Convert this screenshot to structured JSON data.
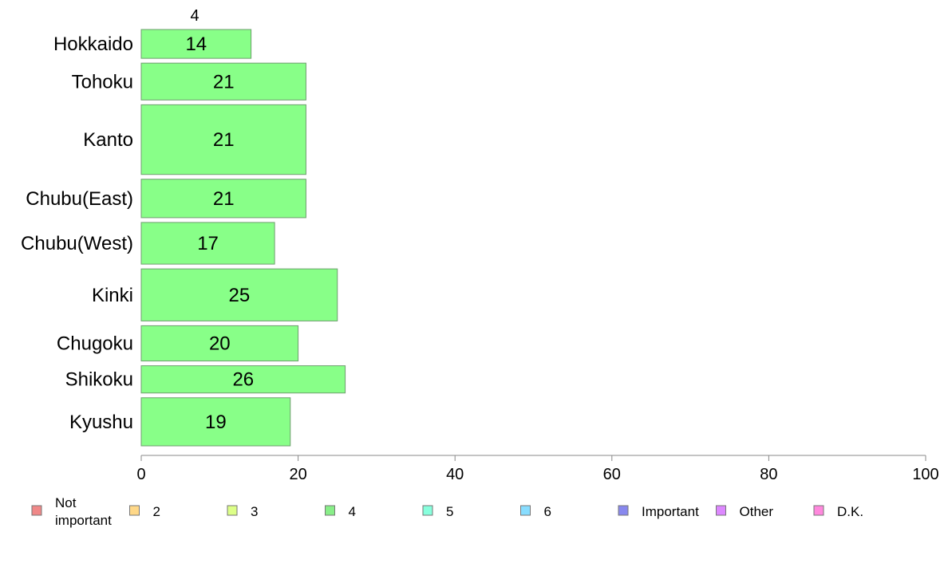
{
  "chart_data": {
    "type": "bar",
    "orientation": "horizontal",
    "series_label_above": "4",
    "categories": [
      "Hokkaido",
      "Tohoku",
      "Kanto",
      "Chubu(East)",
      "Chubu(West)",
      "Kinki",
      "Chugoku",
      "Shikoku",
      "Kyushu"
    ],
    "series": [
      {
        "name": "4",
        "color": "#88ff88",
        "values": [
          14,
          21,
          21,
          21,
          17,
          25,
          20,
          26,
          19
        ]
      }
    ],
    "row_weights": [
      36,
      46,
      87,
      48,
      52,
      65,
      44,
      34,
      60
    ],
    "xlim": [
      0,
      100
    ],
    "xticks": [
      "0",
      "20",
      "40",
      "60",
      "80",
      "100"
    ],
    "grid": false,
    "legend": {
      "placement": "bottom",
      "items": [
        {
          "label": "Not important",
          "color": "#f08888"
        },
        {
          "label": "2",
          "color": "#ffd888"
        },
        {
          "label": "3",
          "color": "#ddff88"
        },
        {
          "label": "4",
          "color": "#88ee88"
        },
        {
          "label": "5",
          "color": "#88ffdd"
        },
        {
          "label": "6",
          "color": "#88ddff"
        },
        {
          "label": "Important",
          "color": "#8888ee"
        },
        {
          "label": "Other",
          "color": "#dd88ff"
        },
        {
          "label": "D.K.",
          "color": "#ff88dd"
        }
      ]
    }
  }
}
